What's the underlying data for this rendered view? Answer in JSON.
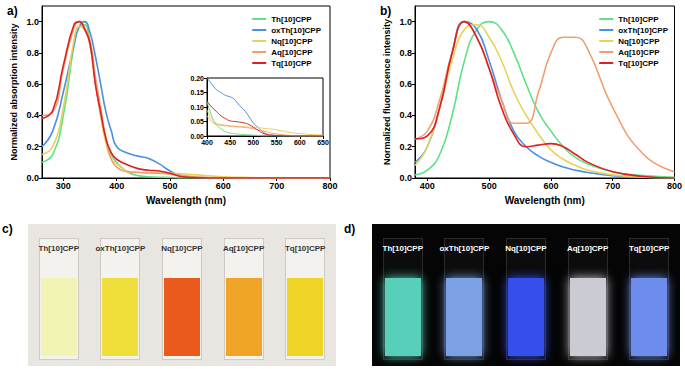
{
  "chart_data": [
    {
      "type": "line",
      "title": "a)",
      "x_label": "Wavelength (nm)",
      "y_label": "Normalized absorption intensity",
      "x": [
        260,
        280,
        300,
        320,
        330,
        340,
        350,
        360,
        370,
        380,
        390,
        400,
        420,
        440,
        460,
        480,
        500,
        520,
        550,
        600,
        650,
        700,
        800
      ],
      "series": [
        {
          "name": "Th[10]CPP",
          "color": "#5fe08a",
          "values": [
            0.1,
            0.15,
            0.4,
            0.85,
            0.97,
            0.98,
            0.85,
            0.62,
            0.4,
            0.25,
            0.15,
            0.1,
            0.04,
            0.015,
            0.008,
            0.005,
            0.003,
            0,
            0,
            0,
            0,
            0,
            0
          ]
        },
        {
          "name": "oxTh[10]CPP",
          "color": "#4a90e2",
          "values": [
            0.2,
            0.3,
            0.55,
            0.85,
            0.97,
            1.0,
            0.93,
            0.78,
            0.6,
            0.42,
            0.3,
            0.2,
            0.16,
            0.14,
            0.125,
            0.09,
            0.045,
            0.015,
            0.003,
            0,
            0,
            0,
            0
          ]
        },
        {
          "name": "Nq[10]CPP",
          "color": "#e6d25a",
          "values": [
            0.15,
            0.2,
            0.45,
            0.88,
            0.97,
            0.95,
            0.85,
            0.62,
            0.4,
            0.22,
            0.12,
            0.09,
            0.045,
            0.037,
            0.034,
            0.032,
            0.03,
            0.027,
            0.02,
            0.008,
            0.003,
            0,
            0
          ]
        },
        {
          "name": "Aq[10]CPP",
          "color": "#f0a070",
          "values": [
            0.4,
            0.42,
            0.7,
            0.96,
            1.0,
            0.96,
            0.88,
            0.65,
            0.45,
            0.25,
            0.12,
            0.07,
            0.04,
            0.035,
            0.032,
            0.03,
            0.025,
            0.018,
            0.007,
            0,
            0,
            0,
            0
          ]
        },
        {
          "name": "Tq[10]CPP",
          "color": "#e02020",
          "values": [
            0.38,
            0.43,
            0.72,
            0.98,
            1.0,
            0.95,
            0.86,
            0.6,
            0.42,
            0.25,
            0.16,
            0.12,
            0.085,
            0.06,
            0.05,
            0.045,
            0.03,
            0.01,
            0.002,
            0,
            0,
            0,
            0
          ]
        }
      ],
      "xlim": [
        260,
        800
      ],
      "xticks": [
        300,
        400,
        500,
        600,
        700,
        800
      ],
      "ylim": [
        0,
        1.1
      ],
      "yticks": [
        {
          "value": 0,
          "label": "0.0"
        },
        {
          "value": 0.2,
          "label": "0.2"
        },
        {
          "value": 0.4,
          "label": "0.4"
        },
        {
          "value": 0.6,
          "label": "0.6"
        },
        {
          "value": 0.8,
          "label": "0.8"
        },
        {
          "value": 1,
          "label": "1.0"
        }
      ],
      "grid": false,
      "legend": "upper right"
    },
    {
      "type": "line",
      "title": "b)",
      "x_label": "Wavelength (nm)",
      "y_label": "Normalized fluorescence intensity",
      "x": [
        380,
        400,
        420,
        440,
        460,
        480,
        500,
        520,
        540,
        560,
        580,
        600,
        620,
        640,
        660,
        700,
        750,
        800
      ],
      "series": [
        {
          "name": "Th[10]CPP",
          "color": "#5fe08a",
          "values": [
            0.02,
            0.05,
            0.15,
            0.4,
            0.75,
            0.95,
            1.0,
            0.95,
            0.8,
            0.6,
            0.42,
            0.3,
            0.2,
            0.13,
            0.09,
            0.04,
            0.015,
            0.005
          ]
        },
        {
          "name": "oxTh[10]CPP",
          "color": "#4a90e2",
          "values": [
            0.1,
            0.2,
            0.45,
            0.8,
            1.0,
            0.95,
            0.75,
            0.5,
            0.3,
            0.2,
            0.14,
            0.1,
            0.07,
            0.05,
            0.035,
            0.015,
            0.005,
            0
          ]
        },
        {
          "name": "Nq[10]CPP",
          "color": "#e6d25a",
          "values": [
            0.08,
            0.2,
            0.45,
            0.75,
            0.95,
            0.98,
            0.9,
            0.75,
            0.55,
            0.4,
            0.28,
            0.18,
            0.12,
            0.08,
            0.05,
            0.02,
            0.005,
            0
          ]
        },
        {
          "name": "Aq[10]CPP",
          "color": "#f0a070",
          "values": [
            0.25,
            0.3,
            0.5,
            0.8,
            1.0,
            0.9,
            0.7,
            0.5,
            0.35,
            0.35,
            0.55,
            0.8,
            0.9,
            0.9,
            0.82,
            0.45,
            0.15,
            0.04
          ]
        },
        {
          "name": "Tq[10]CPP",
          "color": "#e02020",
          "values": [
            0.25,
            0.27,
            0.45,
            0.8,
            1.0,
            0.9,
            0.7,
            0.45,
            0.28,
            0.2,
            0.21,
            0.22,
            0.2,
            0.15,
            0.1,
            0.04,
            0.01,
            0
          ]
        }
      ],
      "xlim": [
        380,
        800
      ],
      "xticks": [
        400,
        500,
        600,
        700,
        800
      ],
      "ylim": [
        0,
        1.1
      ],
      "yticks": [
        {
          "value": 0,
          "label": "0.0"
        },
        {
          "value": 0.2,
          "label": "0.2"
        },
        {
          "value": 0.4,
          "label": "0.4"
        },
        {
          "value": 0.6,
          "label": "0.6"
        },
        {
          "value": 0.8,
          "label": "0.8"
        },
        {
          "value": 1,
          "label": "1.0"
        }
      ],
      "grid": false,
      "legend": "upper right"
    },
    {
      "type": "line",
      "x": [
        400,
        410,
        420,
        430,
        440,
        450,
        460,
        470,
        480,
        490,
        500,
        510,
        520,
        530,
        540,
        560,
        580,
        600,
        650
      ],
      "series": [
        {
          "name": "Th[10]CPP",
          "color": "#5fe08a",
          "values": [
            0.12,
            0.07,
            0.04,
            0.025,
            0.015,
            0.01,
            0.008,
            0.006,
            0.005,
            0.004,
            0.003,
            0.002,
            0,
            0,
            0,
            0,
            0,
            0,
            0
          ]
        },
        {
          "name": "oxTh[10]CPP",
          "color": "#4a90e2",
          "values": [
            0.2,
            0.18,
            0.16,
            0.15,
            0.14,
            0.135,
            0.125,
            0.105,
            0.09,
            0.068,
            0.045,
            0.03,
            0.015,
            0.006,
            0.003,
            0,
            0,
            0,
            0
          ]
        },
        {
          "name": "Nq[10]CPP",
          "color": "#e6d25a",
          "values": [
            0.09,
            0.06,
            0.045,
            0.04,
            0.037,
            0.035,
            0.034,
            0.033,
            0.032,
            0.031,
            0.03,
            0.029,
            0.027,
            0.025,
            0.024,
            0.018,
            0.012,
            0.008,
            0.003
          ]
        },
        {
          "name": "Aq[10]CPP",
          "color": "#f0a070",
          "values": [
            0.07,
            0.05,
            0.04,
            0.037,
            0.035,
            0.034,
            0.032,
            0.031,
            0.03,
            0.028,
            0.025,
            0.021,
            0.018,
            0.014,
            0.01,
            0.005,
            0.002,
            0,
            0
          ]
        },
        {
          "name": "Tq[10]CPP",
          "color": "#e02020",
          "values": [
            0.12,
            0.1,
            0.085,
            0.07,
            0.06,
            0.052,
            0.05,
            0.048,
            0.045,
            0.04,
            0.03,
            0.02,
            0.01,
            0.005,
            0.003,
            0.001,
            0,
            0,
            0
          ]
        }
      ],
      "xlim": [
        400,
        650
      ],
      "xticks": [
        400,
        450,
        500,
        550,
        600,
        650
      ],
      "ylim": [
        0,
        0.2
      ],
      "yticks": [
        {
          "value": 0,
          "label": "0.00"
        },
        {
          "value": 0.05,
          "label": "0.05"
        },
        {
          "value": 0.1,
          "label": "0.10"
        },
        {
          "value": 0.15,
          "label": "0.15"
        },
        {
          "value": 0.2,
          "label": "0.20"
        }
      ],
      "grid": false
    }
  ],
  "photos": [
    {
      "label": "c)",
      "background": "#e9e5e0",
      "samples": [
        {
          "name": "Th[10]CPP",
          "color": "#f1f4b4"
        },
        {
          "name": "oxTh[10]CPP",
          "color": "#f0de3a"
        },
        {
          "name": "Nq[10]CPP",
          "color": "#ea5a1c"
        },
        {
          "name": "Aq[10]CPP",
          "color": "#f0a428"
        },
        {
          "name": "Tq[10]CPP",
          "color": "#efd428"
        }
      ]
    },
    {
      "label": "d)",
      "background": "#050505",
      "samples": [
        {
          "name": "Th[10]CPP",
          "color": "#5fe0c8"
        },
        {
          "name": "oxTh[10]CPP",
          "color": "#86aef8"
        },
        {
          "name": "Nq[10]CPP",
          "color": "#3a55ff"
        },
        {
          "name": "Aq[10]CPP",
          "color": "#dcdce6"
        },
        {
          "name": "Tq[10]CPP",
          "color": "#7598ff"
        }
      ]
    }
  ]
}
